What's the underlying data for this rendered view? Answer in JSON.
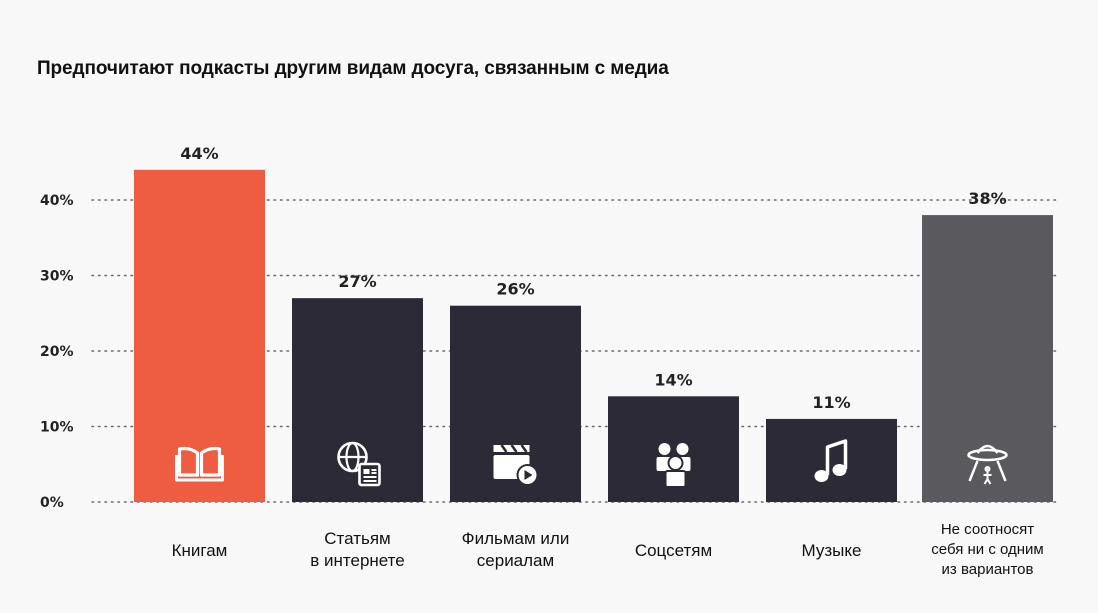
{
  "chart_data": {
    "type": "bar",
    "title": "Предпочитают подкасты другим видам досуга, связанным с медиа",
    "xlabel": "",
    "ylabel": "",
    "ylim": [
      0,
      50
    ],
    "yticks": [
      0,
      10,
      20,
      30,
      40
    ],
    "ytick_labels": [
      "0%",
      "10%",
      "20%",
      "30%",
      "40%"
    ],
    "grid": "dotted horizontal",
    "categories": [
      "Книгам",
      "Статьям\nв интернете",
      "Фильмам или\nсериалам",
      "Соцсетям",
      "Музыке",
      "Не соотносят\nсебя ни с одним\nиз вариантов"
    ],
    "values": [
      44,
      27,
      26,
      14,
      11,
      38
    ],
    "value_labels": [
      "44%",
      "27%",
      "26%",
      "14%",
      "11%",
      "38%"
    ],
    "bar_colors": [
      "#ee5d41",
      "#2c2a36",
      "#2c2a36",
      "#2c2a36",
      "#2c2a36",
      "#5a595e"
    ],
    "icons": [
      "book-icon",
      "globe-news-icon",
      "clapper-play-icon",
      "people-icon",
      "music-note-icon",
      "ufo-icon"
    ]
  }
}
